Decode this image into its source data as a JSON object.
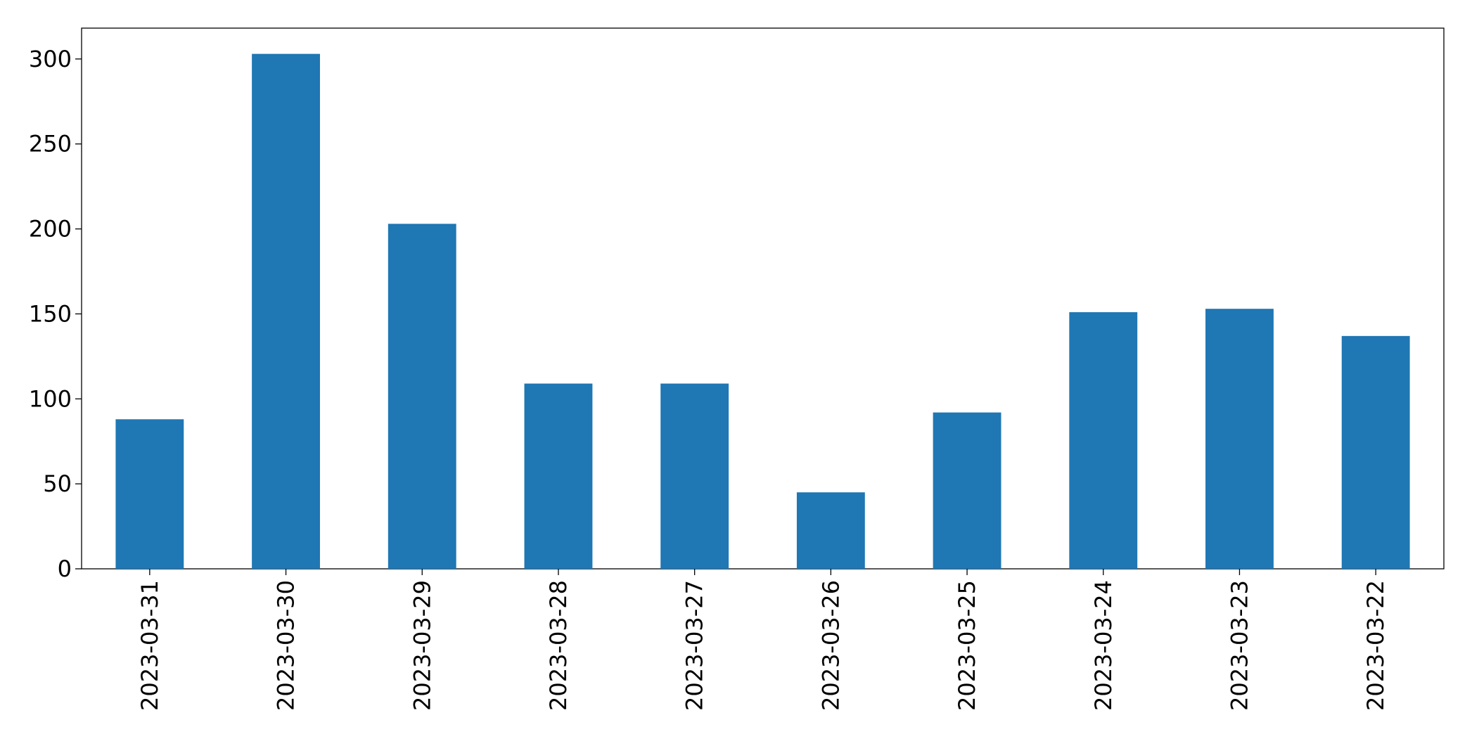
{
  "chart_data": {
    "type": "bar",
    "categories": [
      "2023-03-31",
      "2023-03-30",
      "2023-03-29",
      "2023-03-28",
      "2023-03-27",
      "2023-03-26",
      "2023-03-25",
      "2023-03-24",
      "2023-03-23",
      "2023-03-22"
    ],
    "values": [
      88,
      303,
      203,
      109,
      109,
      45,
      92,
      151,
      153,
      137
    ],
    "color": "#1f77b4",
    "ylim": [
      0,
      318.15
    ],
    "yticks": [
      0,
      50,
      100,
      150,
      200,
      250,
      300
    ],
    "grid": false
  }
}
